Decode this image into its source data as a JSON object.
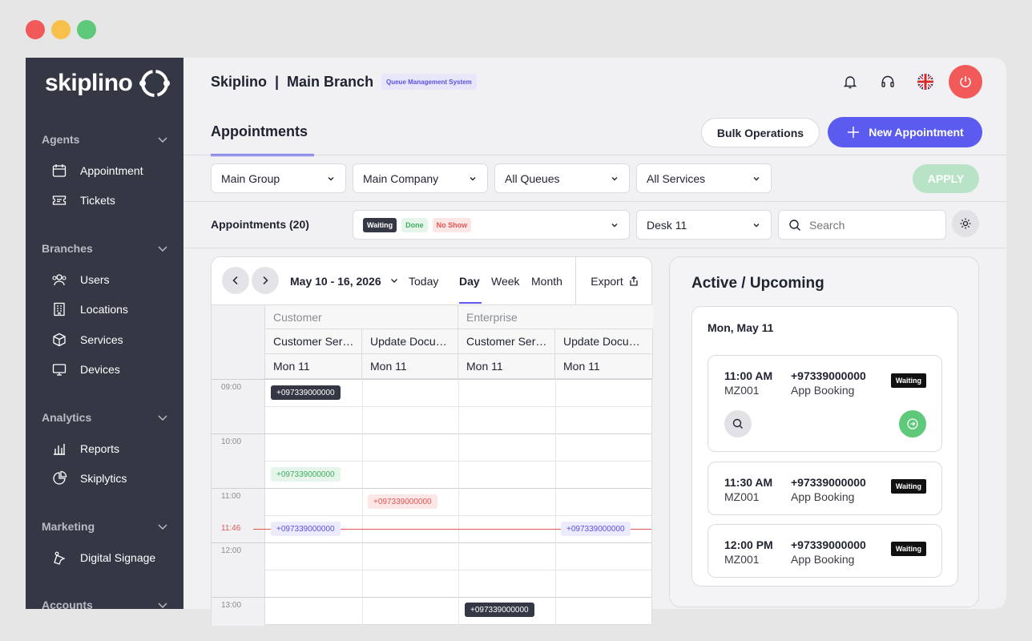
{
  "app": {
    "logo_text": "skiplino",
    "title": "Skiplino  |  Main Branch",
    "badge": "Queue Management System"
  },
  "colors": {
    "accent": "#5b5bf0",
    "sidebar": "#343844",
    "danger": "#f25a5a",
    "success": "#5ec97a"
  },
  "sidebar": {
    "sections": [
      {
        "title": "Agents",
        "items": [
          {
            "label": "Appointment",
            "icon": "calendar-icon"
          },
          {
            "label": "Tickets",
            "icon": "ticket-icon"
          }
        ]
      },
      {
        "title": "Branches",
        "items": [
          {
            "label": "Users",
            "icon": "users-icon"
          },
          {
            "label": "Locations",
            "icon": "building-icon"
          },
          {
            "label": "Services",
            "icon": "box-icon"
          },
          {
            "label": "Devices",
            "icon": "monitor-icon"
          }
        ]
      },
      {
        "title": "Analytics",
        "items": [
          {
            "label": "Reports",
            "icon": "chart-icon"
          },
          {
            "label": "Skiplytics",
            "icon": "pie-icon"
          }
        ]
      },
      {
        "title": "Marketing",
        "items": [
          {
            "label": "Digital Signage",
            "icon": "signage-icon"
          }
        ]
      },
      {
        "title": "Accounts",
        "items": []
      }
    ]
  },
  "page": {
    "title": "Appointments",
    "bulk_label": "Bulk Operations",
    "new_label": "New Appointment"
  },
  "filters": {
    "group": "Main Group",
    "company": "Main Company",
    "queues": "All Queues",
    "services": "All Services",
    "apply": "APPLY"
  },
  "subbar": {
    "count_label": "Appointments (20)",
    "status_chips": [
      "Waiting",
      "Done",
      "No Show"
    ],
    "desk": "Desk 11",
    "search_placeholder": "Search"
  },
  "calendar": {
    "range": "May 10 - 16, 2026",
    "today": "Today",
    "views": [
      "Day",
      "Week",
      "Month"
    ],
    "active_view": "Day",
    "export": "Export",
    "groups": [
      "Customer",
      "Enterprise"
    ],
    "columns": [
      {
        "service": "Customer Ser…",
        "day": "Mon 11"
      },
      {
        "service": "Update Docu…",
        "day": "Mon 11"
      },
      {
        "service": "Customer Ser…",
        "day": "Mon 11"
      },
      {
        "service": "Update Docu…",
        "day": "Mon 11"
      }
    ],
    "times": [
      "09:00",
      "10:00",
      "11:00",
      "11:46",
      "12:00",
      "13:00"
    ],
    "now": "11:46",
    "events": [
      {
        "text": "+097339000000",
        "style": "dark"
      },
      {
        "text": "+097339000000",
        "style": "green"
      },
      {
        "text": "+097339000000",
        "style": "red"
      },
      {
        "text": "+097339000000",
        "style": "purple"
      },
      {
        "text": "+097339000000",
        "style": "purple"
      },
      {
        "text": "+097339000000",
        "style": "dark"
      }
    ]
  },
  "upcoming": {
    "title": "Active / Upcoming",
    "day": "Mon, May 11",
    "items": [
      {
        "time": "11:00 AM",
        "code": "MZ001",
        "phone": "+97339000000",
        "source": "App Booking",
        "status": "Waiting"
      },
      {
        "time": "11:30 AM",
        "code": "MZ001",
        "phone": "+97339000000",
        "source": "App Booking",
        "status": "Waiting"
      },
      {
        "time": "12:00 PM",
        "code": "MZ001",
        "phone": "+97339000000",
        "source": "App Booking",
        "status": "Waiting"
      }
    ]
  }
}
